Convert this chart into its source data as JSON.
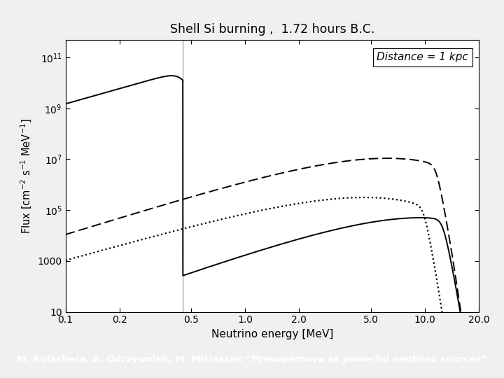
{
  "title": "Shell Si burning ,  1.72 hours B.C.",
  "xlabel": "Neutrino energy [MeV]",
  "ylabel": "Flux [cm$^{-2}$ s$^{-1}$ MeV$^{-1}$]",
  "xlim": [
    0.1,
    20.0
  ],
  "ylim": [
    10,
    500000000000.0
  ],
  "annotation": "Distance = 1 kpc",
  "vertical_line_x": 0.45,
  "background_color": "#ffffff",
  "bottom_bar_color": "#2d3e9e",
  "bottom_bar_text": "M. Kutschera, A. Odrzywolek, M. Misiaszek “Presupernova as powerful neutrino sources”",
  "outer_bg": "#f0f0f0"
}
